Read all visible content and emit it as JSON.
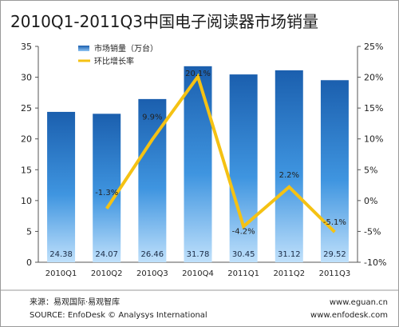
{
  "chart_data": {
    "type": "bar",
    "title": "2010Q1-2011Q3中国电子阅读器市场销量",
    "categories": [
      "2010Q1",
      "2010Q2",
      "2010Q3",
      "2010Q4",
      "2011Q1",
      "2011Q2",
      "2011Q3"
    ],
    "series": [
      {
        "name": "市场销量（万台）",
        "type": "bar",
        "axis": "left",
        "color": "#2a7fd1",
        "values": [
          24.38,
          24.07,
          26.46,
          31.78,
          30.45,
          31.12,
          29.52
        ],
        "labels": [
          "24.38",
          "24.07",
          "26.46",
          "31.78",
          "30.45",
          "31.12",
          "29.52"
        ]
      },
      {
        "name": "环比增长率",
        "type": "line",
        "axis": "right",
        "color": "#f5c213",
        "values": [
          null,
          -1.3,
          9.9,
          20.1,
          -4.2,
          2.2,
          -5.1
        ],
        "labels": [
          "",
          "-1.3%",
          "9.9%",
          "20.1%",
          "-4.2%",
          "2.2%",
          "-5.1%"
        ]
      }
    ],
    "left_axis": {
      "ylim": [
        0,
        35
      ],
      "ticks": [
        "0",
        "5",
        "10",
        "15",
        "20",
        "25",
        "30",
        "35"
      ]
    },
    "right_axis": {
      "ylim": [
        -10,
        25
      ],
      "ticks": [
        "-10%",
        "-5%",
        "0%",
        "5%",
        "10%",
        "15%",
        "20%",
        "25%"
      ]
    },
    "grid": false,
    "legend_position": "top-left"
  },
  "footer": {
    "source_cn": "来源：易观国际·易观智库",
    "source_en": "SOURCE: EnfoDesk © Analysys International",
    "url1": "www.eguan.cn",
    "url2": "www.enfodesk.com"
  }
}
